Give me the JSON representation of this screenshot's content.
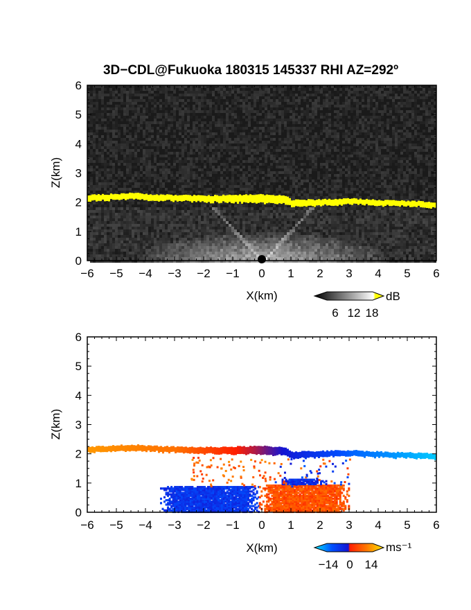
{
  "title": "3D−CDL@Fukuoka 180315 145337 RHI AZ=292º",
  "chart_data": [
    {
      "type": "heatmap",
      "variable": "backscatter intensity",
      "xlabel": "X(km)",
      "ylabel": "Z(km)",
      "xlim": [
        -6,
        6
      ],
      "ylim": [
        0,
        6
      ],
      "x_ticks": [
        "−6",
        "−5",
        "−4",
        "−3",
        "−2",
        "−1",
        "0",
        "1",
        "2",
        "3",
        "4",
        "5",
        "6"
      ],
      "y_ticks": [
        "0",
        "1",
        "2",
        "3",
        "4",
        "5",
        "6"
      ],
      "background": "#1a1a1a",
      "cloud_layer": {
        "color": "#ffff00",
        "profile": [
          {
            "x": -6,
            "z_bottom": 2.03,
            "z_top": 2.22
          },
          {
            "x": -5,
            "z_bottom": 2.08,
            "z_top": 2.26
          },
          {
            "x": -4.5,
            "z_bottom": 2.11,
            "z_top": 2.3
          },
          {
            "x": -4,
            "z_bottom": 2.07,
            "z_top": 2.25
          },
          {
            "x": -3,
            "z_bottom": 2.04,
            "z_top": 2.22
          },
          {
            "x": -2,
            "z_bottom": 2.0,
            "z_top": 2.2
          },
          {
            "x": -1,
            "z_bottom": 1.98,
            "z_top": 2.22
          },
          {
            "x": 0,
            "z_bottom": 1.97,
            "z_top": 2.24
          },
          {
            "x": 0.8,
            "z_bottom": 1.95,
            "z_top": 2.2
          },
          {
            "x": 1,
            "z_bottom": 1.84,
            "z_top": 2.05
          },
          {
            "x": 2,
            "z_bottom": 1.88,
            "z_top": 2.07
          },
          {
            "x": 3,
            "z_bottom": 1.92,
            "z_top": 2.1
          },
          {
            "x": 4,
            "z_bottom": 1.88,
            "z_top": 2.05
          },
          {
            "x": 5,
            "z_bottom": 1.85,
            "z_top": 2.02
          },
          {
            "x": 6,
            "z_bottom": 1.8,
            "z_top": 1.98
          }
        ]
      },
      "colorbar": {
        "unit": "dB",
        "ticks": [
          "6",
          "12",
          "18"
        ],
        "colors": [
          "#000000",
          "#ffffff",
          "#ffff00"
        ]
      }
    },
    {
      "type": "heatmap",
      "variable": "Doppler velocity",
      "xlabel": "X(km)",
      "ylabel": "Z(km)",
      "xlim": [
        -6,
        6
      ],
      "ylim": [
        0,
        6
      ],
      "x_ticks": [
        "−6",
        "−5",
        "−4",
        "−3",
        "−2",
        "−1",
        "0",
        "1",
        "2",
        "3",
        "4",
        "5",
        "6"
      ],
      "y_ticks": [
        "0",
        "1",
        "2",
        "3",
        "4",
        "5",
        "6"
      ],
      "cloud_layer_velocity": [
        {
          "x": -6,
          "v": 10
        },
        {
          "x": -3,
          "v": 8
        },
        {
          "x": -1,
          "v": 3
        },
        {
          "x": -0.3,
          "v": 1
        },
        {
          "x": 0.2,
          "v": -1
        },
        {
          "x": 1,
          "v": -4
        },
        {
          "x": 3,
          "v": -9
        },
        {
          "x": 6,
          "v": -13
        }
      ],
      "boundary_layer": {
        "regions": [
          {
            "x": [
              -3.5,
              -0.1
            ],
            "z": [
              0,
              0.9
            ],
            "v": -6
          },
          {
            "x": [
              -0.1,
              3.0
            ],
            "z": [
              0,
              0.95
            ],
            "v": 6
          },
          {
            "x": [
              0.5,
              2.2
            ],
            "z": [
              0.95,
              1.15
            ],
            "v": -5
          }
        ]
      },
      "colorbar": {
        "unit": "ms⁻¹",
        "ticks": [
          "−14",
          "0",
          "14"
        ],
        "colors": [
          "#00e5ff",
          "#0050ff",
          "#1414d2",
          "#ff1e00",
          "#ff7800",
          "#ffe600"
        ]
      }
    }
  ]
}
